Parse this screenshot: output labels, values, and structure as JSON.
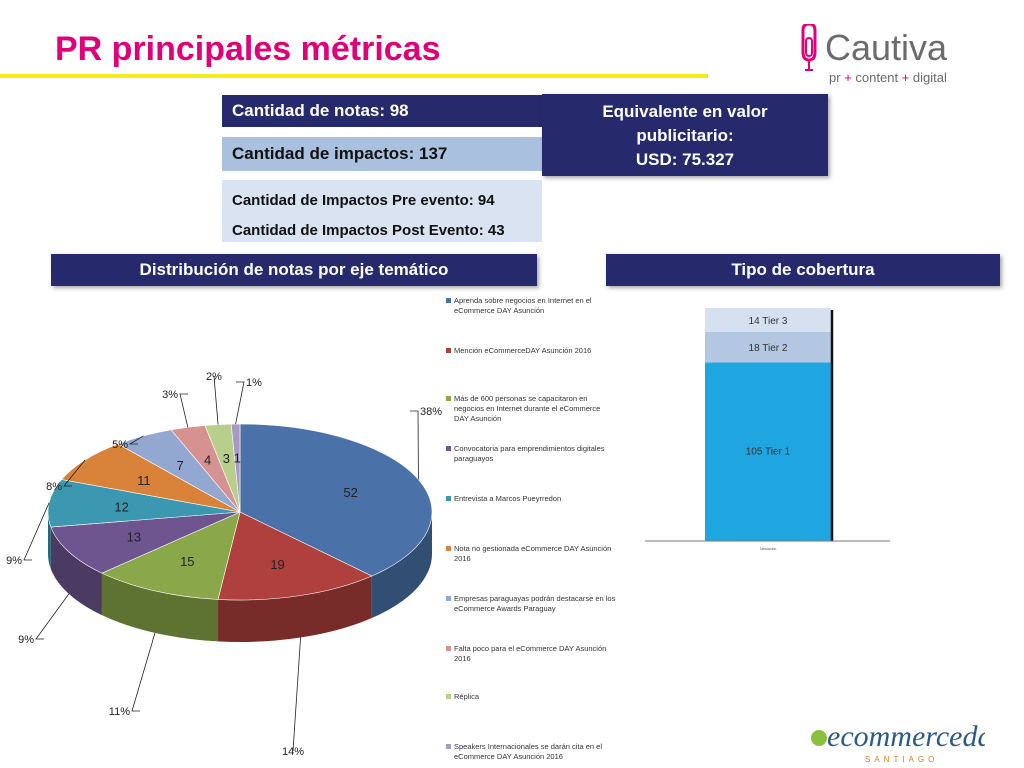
{
  "title": "PR principales métricas",
  "logo": {
    "brand": "Cautiva",
    "tagline_parts": [
      "pr",
      "+",
      "content",
      "+",
      "digital"
    ]
  },
  "metrics": {
    "notas": "Cantidad de notas: 98",
    "impactos": "Cantidad de impactos: 137",
    "pre": "Cantidad de Impactos Pre evento: 94",
    "post": "Cantidad de Impactos Post Evento: 43",
    "valor_line1": "Equivalente en valor",
    "valor_line2": "publicitario:",
    "valor_line3": "USD: 75.327"
  },
  "headers": {
    "distribucion": "Distribución de notas por eje temático",
    "tipo": "Tipo de cobertura"
  },
  "chart_data": [
    {
      "type": "pie",
      "categories": [
        "Aprenda sobre negocios en Internet en el eCommerce DAY Asunción",
        "Mención eCommerceDAY Asunción 2016",
        "Más de 600 personas se capacitaron en negocios en Internet durante el eCommerce DAY Asunción",
        "Convocatoria para emprendimientos digitales paraguayos",
        "Entrevista a Marcos Pueyrredon",
        "Nota no gestionada eCommerce DAY Asunción 2016",
        "Empresas paraguayas podrán destacarse en los eCommerce Awards Paraguay",
        "Falta poco para el eCommerce DAY Asunción 2016",
        "Réplica",
        "Speakers Internacionales se darán cita en el eCommerce DAY Asunción 2016"
      ],
      "values": [
        52,
        19,
        15,
        13,
        12,
        11,
        7,
        4,
        3,
        1
      ],
      "percent_labels": [
        "38%",
        "14%",
        "11%",
        "9%",
        "9%",
        "8%",
        "5%",
        "3%",
        "2%",
        "1%"
      ],
      "colors": [
        "#4a72a8",
        "#b0403d",
        "#8aa84a",
        "#6e5590",
        "#3c98b0",
        "#d9833a",
        "#92a8d0",
        "#d69290",
        "#b8cf8c",
        "#a99ac4"
      ]
    },
    {
      "type": "bar",
      "stacked": true,
      "categories": [
        "Tabulación"
      ],
      "series": [
        {
          "name": "Tier 1",
          "values": [
            105
          ],
          "label": "105 Tier 1",
          "color": "#1fa6e0"
        },
        {
          "name": "Tier 2",
          "values": [
            18
          ],
          "label": "18 Tier 2",
          "color": "#b3c7e2"
        },
        {
          "name": "Tier 3",
          "values": [
            14
          ],
          "label": "14 Tier 3",
          "color": "#d6e1ef"
        }
      ],
      "ylim": [
        0,
        137
      ]
    }
  ],
  "footer_logo": {
    "brand": "ecommerceday",
    "city": "SANTIAGO"
  }
}
